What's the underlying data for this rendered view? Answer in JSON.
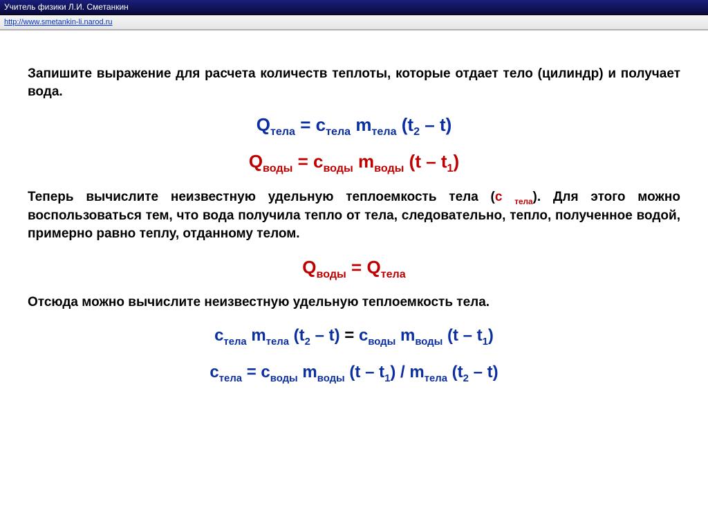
{
  "header": {
    "title": "Учитель физики Л.И. Сметанкин"
  },
  "urlbar": {
    "url": "http://www.smetankin-li.narod.ru"
  },
  "para1_a": "Запишите выражение для расчета количеств теплоты, которые отдает тело (цилиндр) и получает вода.",
  "para2_a": "Теперь вычислите неизвестную удельную теплоемкость тела (",
  "para2_c": "c ",
  "para2_cs": "тела",
  "para2_b": "). Для этого можно воспользоваться тем, что вода получила тепло от тела, следовательно, тепло, полученное водой, примерно равно теплу, отданному телом.",
  "para3": "Отсюда можно вычислите неизвестную удельную теплоемкость тела.",
  "f1": {
    "Q": "Q",
    "Qs": "тела",
    "eq": " = ",
    "c": "c",
    "cs": "тела",
    "m": " m",
    "ms": "тела",
    "p1": " (t",
    "p1s": "2",
    "p2": " – t)"
  },
  "f2": {
    "Q": "Q",
    "Qs": "воды",
    "eq": " = ",
    "c": "c",
    "cs": "воды",
    "m": " m",
    "ms": "воды",
    "p1": " (t – t",
    "p1s": "1",
    "p2": ")"
  },
  "f3": {
    "Q1": "Q",
    "Q1s": "воды",
    "eq": " = ",
    "Q2": "Q",
    "Q2s": "тела"
  },
  "f4": {
    "c1": "c",
    "c1s": "тела",
    "m1": " m",
    "m1s": "тела",
    "p1": " (t",
    "p1s": "2",
    "p1e": " – t) ",
    "eq": " = ",
    "c2": " c",
    "c2s": "воды",
    "m2": " m",
    "m2s": "воды",
    "p2": " (t – t",
    "p2s": "1",
    "p2e": ")"
  },
  "f5": {
    "c1": "c",
    "c1s": "тела",
    "eq": " = ",
    "c2": " c",
    "c2s": "воды",
    "m2": " m",
    "m2s": "воды",
    "p1": " (t – t",
    "p1s": "1",
    "p1e": ") / ",
    "m1": "m",
    "m1s": "тела",
    "p2": " (t",
    "p2s": "2",
    "p2e": " – t)"
  }
}
